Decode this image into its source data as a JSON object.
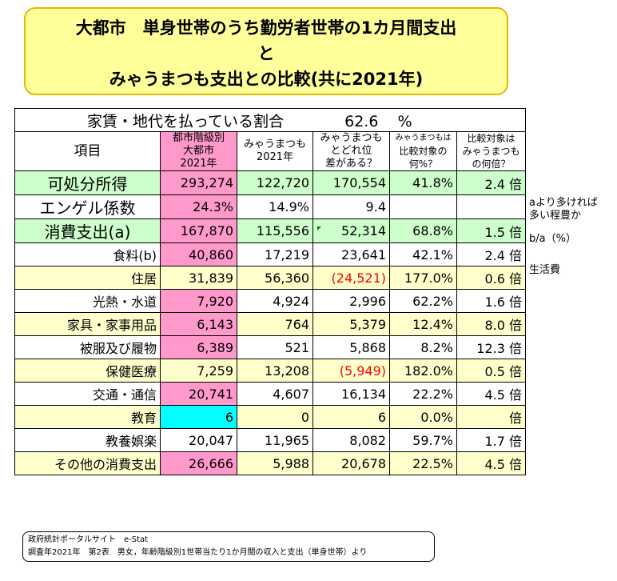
{
  "title": {
    "line1": "大都市　単身世帯のうち勤労者世帯の1カ月間支出",
    "line2": "と",
    "line3": "みゃうまつも支出との比較(共に2021年)"
  },
  "ratio": {
    "label": "家賃・地代を払っている割合",
    "value": "62.6",
    "unit": "%"
  },
  "headers": {
    "item": "項目",
    "col1": [
      "都市階級別",
      "大都市",
      "2021年"
    ],
    "col2": [
      "みゃうまつも",
      "2021年"
    ],
    "col3": [
      "みゃうまつも",
      "とどれ位",
      "差がある？"
    ],
    "col4": [
      "みゃうまつもは",
      "比較対象の",
      "何%？"
    ],
    "col5": [
      "比較対象は",
      "みゃうまつも",
      "の何倍？"
    ]
  },
  "rows": [
    {
      "item": "可処分所得",
      "city": "293,274",
      "mine": "122,720",
      "diff": "170,554",
      "pct": "41.8%",
      "times": "2.4 倍"
    },
    {
      "item": "エンゲル係数",
      "city": "24.3%",
      "mine": "14.9%",
      "diff": "9.4",
      "pct": "",
      "times": ""
    },
    {
      "item": "消費支出(a)",
      "city": "167,870",
      "mine": "115,556",
      "diff": "52,314",
      "pct": "68.8%",
      "times": "1.5 倍"
    },
    {
      "item": "食料(b)",
      "city": "40,860",
      "mine": "17,219",
      "diff": "23,641",
      "pct": "42.1%",
      "times": "2.4 倍"
    },
    {
      "item": "住居",
      "city": "31,839",
      "mine": "56,360",
      "diff": "(24,521)",
      "pct": "177.0%",
      "times": "0.6 倍"
    },
    {
      "item": "光熱・水道",
      "city": "7,920",
      "mine": "4,924",
      "diff": "2,996",
      "pct": "62.2%",
      "times": "1.6 倍"
    },
    {
      "item": "家具・家事用品",
      "city": "6,143",
      "mine": "764",
      "diff": "5,379",
      "pct": "12.4%",
      "times": "8.0 倍"
    },
    {
      "item": "被服及び履物",
      "city": "6,389",
      "mine": "521",
      "diff": "5,868",
      "pct": "8.2%",
      "times": "12.3 倍"
    },
    {
      "item": "保健医療",
      "city": "7,259",
      "mine": "13,208",
      "diff": "(5,949)",
      "pct": "182.0%",
      "times": "0.5 倍"
    },
    {
      "item": "交通・通信",
      "city": "20,741",
      "mine": "4,607",
      "diff": "16,134",
      "pct": "22.2%",
      "times": "4.5 倍"
    },
    {
      "item": "教育",
      "city": "6",
      "mine": "0",
      "diff": "6",
      "pct": "0.0%",
      "times": "倍"
    },
    {
      "item": "教養娯楽",
      "city": "20,047",
      "mine": "11,965",
      "diff": "8,082",
      "pct": "59.7%",
      "times": "1.7 倍"
    },
    {
      "item": "その他の消費支出",
      "city": "26,666",
      "mine": "5,988",
      "diff": "20,678",
      "pct": "22.5%",
      "times": "4.5 倍"
    }
  ],
  "notes": {
    "n1": [
      "aより多ければ",
      "多い程豊か"
    ],
    "n2": "b/a（%）",
    "n3": "生活費"
  },
  "source": {
    "line1": "政府統計ポータルサイト　e-Stat",
    "line2": "調査年2021年　第2表　男女，年齢階級別1世帯当たり1か月間の収入と支出（単身世帯）より"
  },
  "colors": {
    "pink": "#ff99cc",
    "green": "#ccffcc",
    "ivory": "#ffffcc",
    "cyan": "#00ffff",
    "negative": "#ff0000"
  }
}
